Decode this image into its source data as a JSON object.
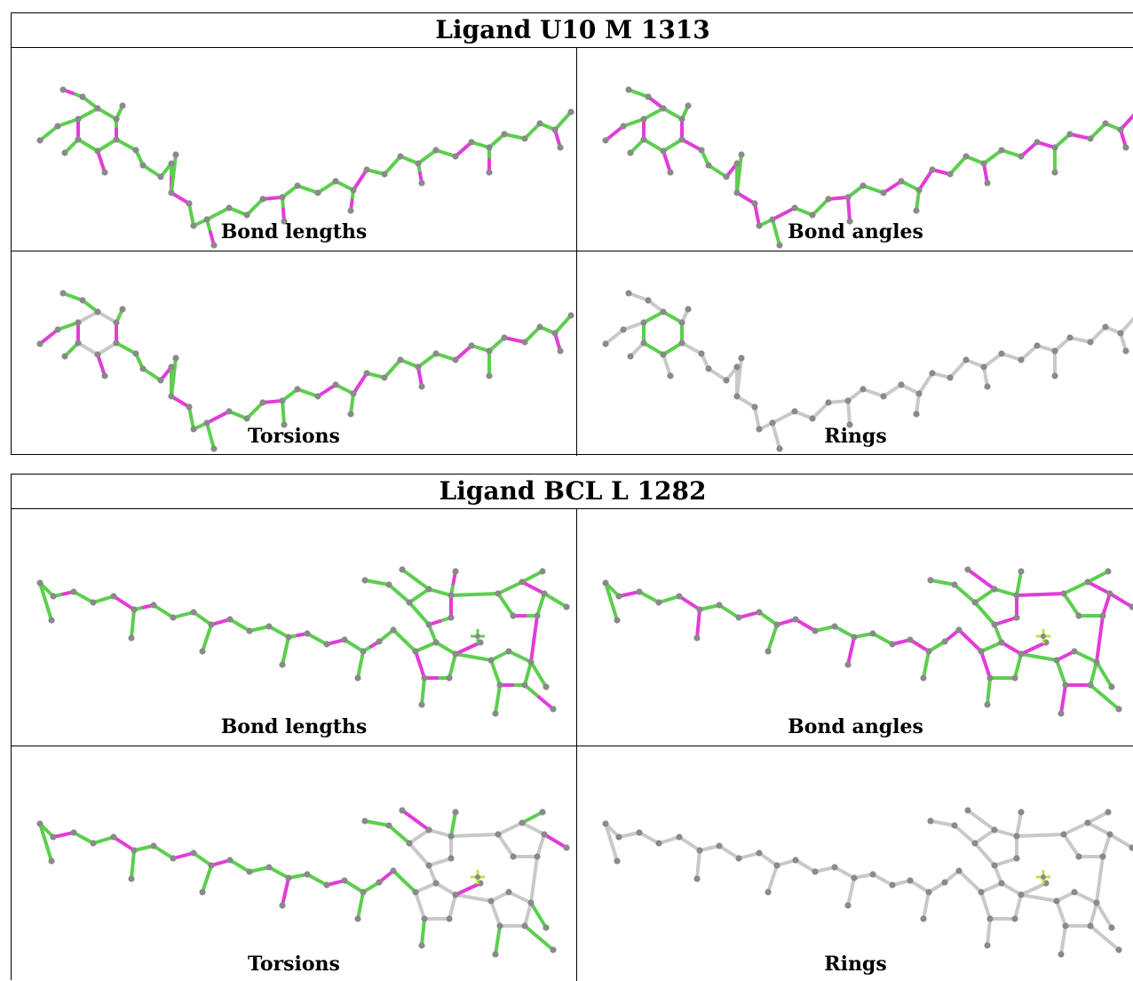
{
  "colors": {
    "green": "#5ccf4e",
    "magenta": "#e23cd9",
    "grey": "#c9c9c9",
    "atom": "#8a8a8a",
    "metal": "#b8e63c"
  },
  "panels": [
    {
      "title": "Ligand U10 M 1313",
      "cells": [
        {
          "caption": "Bond lengths",
          "mol": "u10",
          "mode": "lengths"
        },
        {
          "caption": "Bond angles",
          "mol": "u10",
          "mode": "angles"
        },
        {
          "caption": "Torsions",
          "mol": "u10",
          "mode": "torsions"
        },
        {
          "caption": "Rings",
          "mol": "u10",
          "mode": "rings"
        }
      ]
    },
    {
      "title": "Ligand BCL L 1282",
      "cells": [
        {
          "caption": "Bond lengths",
          "mol": "bcl",
          "mode": "lengths"
        },
        {
          "caption": "Bond angles",
          "mol": "bcl",
          "mode": "angles"
        },
        {
          "caption": "Torsions",
          "mol": "bcl",
          "mode": "torsions"
        },
        {
          "caption": "Rings",
          "mol": "bcl",
          "mode": "rings"
        }
      ]
    }
  ]
}
